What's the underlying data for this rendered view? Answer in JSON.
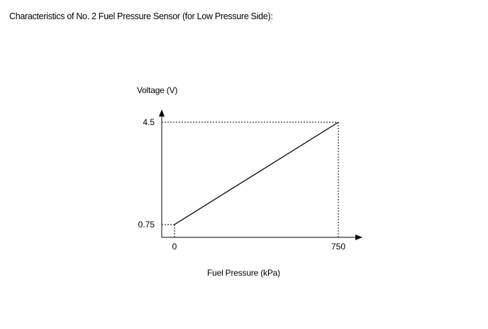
{
  "caption": "Characteristics of No. 2 Fuel Pressure Sensor (for Low Pressure Side):",
  "chart_data": {
    "type": "line",
    "title": "",
    "xlabel": "Fuel Pressure (kPa)",
    "ylabel": "Voltage (V)",
    "x": [
      0,
      750
    ],
    "series": [
      {
        "values": [
          0.75,
          4.5
        ]
      }
    ],
    "xticks": [
      "0",
      "750"
    ],
    "yticks": [
      "0.75",
      "4.5"
    ],
    "grid": false,
    "reference_lines": "dashed"
  }
}
